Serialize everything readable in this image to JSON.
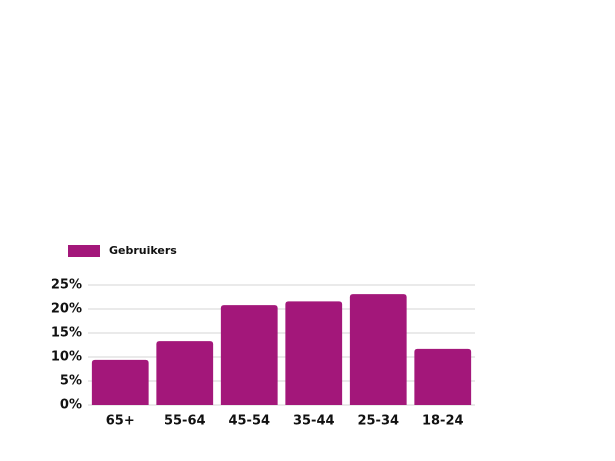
{
  "chart_data": {
    "type": "bar",
    "categories": [
      "65+",
      "55-64",
      "45-54",
      "35-44",
      "25-34",
      "18-24"
    ],
    "series": [
      {
        "name": "Gebruikers",
        "color": "#a3177a",
        "values": [
          9.4,
          13.3,
          20.8,
          21.6,
          23.1,
          11.7
        ]
      }
    ],
    "ylim": [
      0,
      25
    ],
    "yticks": [
      {
        "value": 0,
        "label": "0%"
      },
      {
        "value": 5,
        "label": "5%"
      },
      {
        "value": 10,
        "label": "10%"
      },
      {
        "value": 15,
        "label": "15%"
      },
      {
        "value": 20,
        "label": "20%"
      },
      {
        "value": 25,
        "label": "25%"
      }
    ],
    "grid": true,
    "legend": "top-left"
  }
}
